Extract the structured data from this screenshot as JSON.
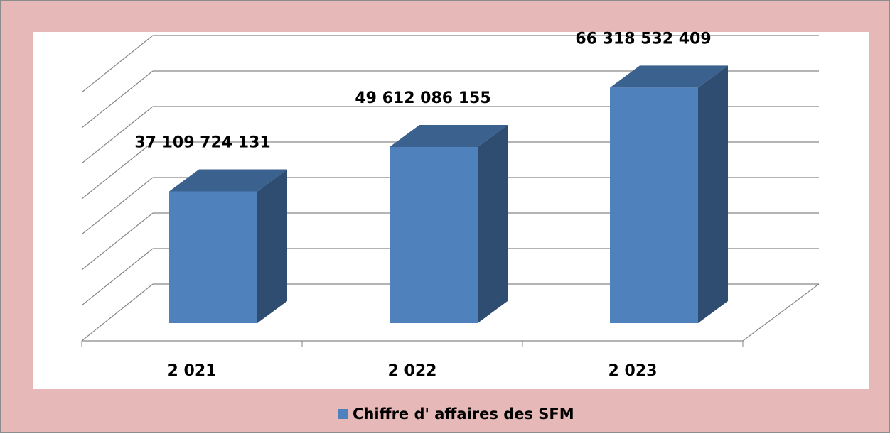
{
  "chart_data": {
    "type": "bar3d",
    "categories": [
      "2 021",
      "2 022",
      "2 023"
    ],
    "series": [
      {
        "name": "Chiffre d' affaires des SFM",
        "color": "#4f81bd",
        "values": [
          37109724131,
          49612086155,
          66318532409
        ],
        "value_labels": [
          "37 109 724 131",
          "49 612 086 155",
          "66 318 532 409"
        ]
      }
    ],
    "ylim": [
      0,
      70000000000
    ],
    "yticks": [
      0,
      10000000000,
      20000000000,
      30000000000,
      40000000000,
      50000000000,
      60000000000,
      70000000000
    ],
    "grid": true,
    "legend": "bottom"
  }
}
